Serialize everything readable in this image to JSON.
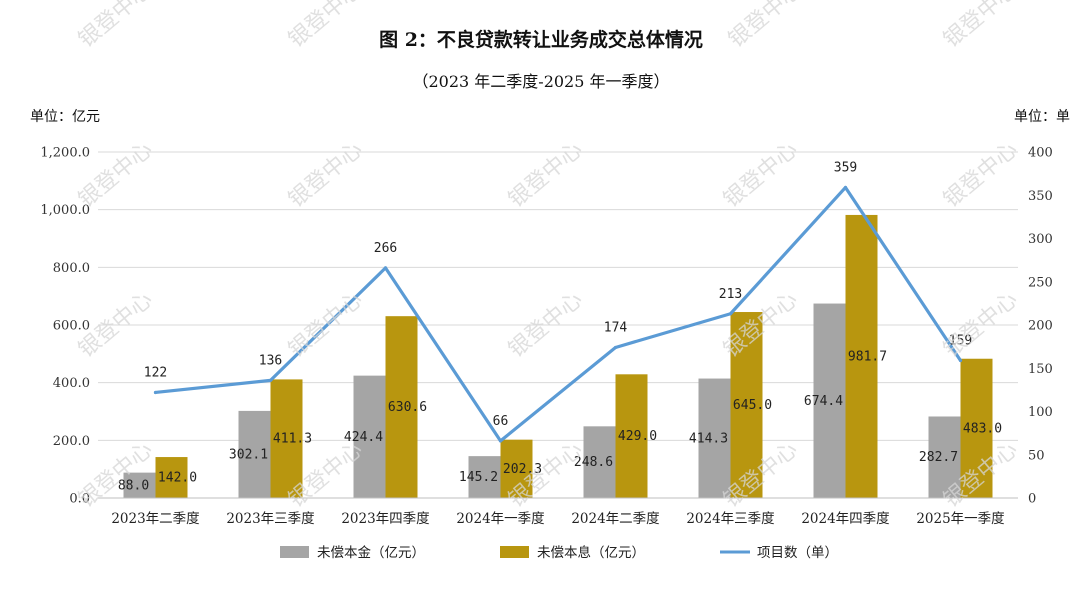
{
  "chart_data": {
    "type": "bar",
    "title": "图 2：不良贷款转让业务成交总体情况",
    "subtitle": "（2023 年二季度-2025 年一季度）",
    "left_unit": "单位：亿元",
    "right_unit": "单位：单",
    "categories": [
      "2023年二季度",
      "2023年三季度",
      "2023年四季度",
      "2024年一季度",
      "2024年二季度",
      "2024年三季度",
      "2024年四季度",
      "2025年一季度"
    ],
    "series": [
      {
        "name": "未偿本金（亿元）",
        "type": "bar",
        "axis": "left",
        "color": "#a5a5a5",
        "values": [
          88.0,
          302.1,
          424.4,
          145.2,
          248.6,
          414.3,
          674.4,
          282.7
        ],
        "labels": [
          "88.0",
          "302.1",
          "424.4",
          "145.2",
          "248.6",
          "414.3",
          "674.4",
          "282.7"
        ]
      },
      {
        "name": "未偿本息（亿元）",
        "type": "bar",
        "axis": "left",
        "color": "#b8960f",
        "values": [
          142.0,
          411.3,
          630.6,
          202.3,
          429.0,
          645.0,
          981.7,
          483.0
        ],
        "labels": [
          "142.0",
          "411.3",
          "630.6",
          "202.3",
          "429.0",
          "645.0",
          "981.7",
          "483.0"
        ]
      },
      {
        "name": "项目数（单）",
        "type": "line",
        "axis": "right",
        "color": "#5b9bd5",
        "values": [
          122,
          136,
          266,
          66,
          174,
          213,
          359,
          159
        ],
        "labels": [
          "122",
          "136",
          "266",
          "66",
          "174",
          "213",
          "359",
          "159"
        ]
      }
    ],
    "y_left": {
      "ylim": [
        0,
        1200
      ],
      "ticks": [
        0,
        200,
        400,
        600,
        800,
        1000,
        1200
      ],
      "tick_labels": [
        "0.0",
        "200.0",
        "400.0",
        "600.0",
        "800.0",
        "1,000.0",
        "1,200.0"
      ]
    },
    "y_right": {
      "ylim": [
        0,
        400
      ],
      "ticks": [
        0,
        50,
        100,
        150,
        200,
        250,
        300,
        350,
        400
      ],
      "tick_labels": [
        "0",
        "50",
        "100",
        "150",
        "200",
        "250",
        "300",
        "350",
        "400"
      ]
    },
    "grid": true,
    "legend_position": "bottom",
    "watermark": "银登中心"
  }
}
